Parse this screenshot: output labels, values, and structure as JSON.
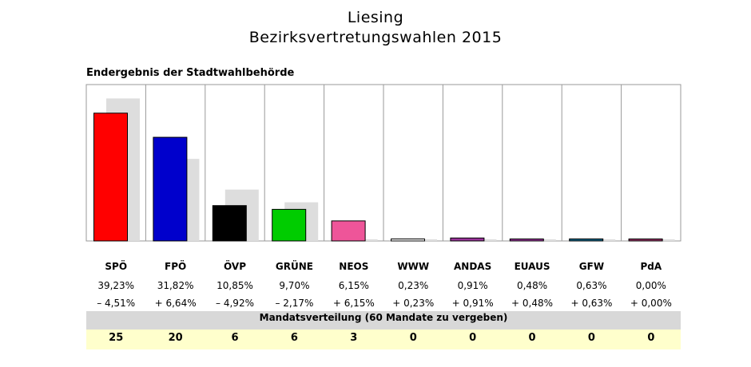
{
  "header": {
    "title_line1": "Liesing",
    "title_line2": "Bezirksvertretungswahlen 2015",
    "subtitle": "Endergebnis der Stadtwahlbehörde"
  },
  "chart_data": {
    "type": "bar",
    "title": "Liesing Bezirksvertretungswahlen 2015",
    "subtitle": "Endergebnis der Stadtwahlbehörde",
    "categories": [
      "SPÖ",
      "FPÖ",
      "ÖVP",
      "GRÜNE",
      "NEOS",
      "WWW",
      "ANDAS",
      "EUAUS",
      "GFW",
      "PdA"
    ],
    "ylim": [
      0,
      48
    ],
    "grid": false,
    "series": [
      {
        "name": "2015",
        "values": [
          39.23,
          31.82,
          10.85,
          9.7,
          6.15,
          0.23,
          0.91,
          0.48,
          0.63,
          0.0
        ],
        "labels": [
          "39,23%",
          "31,82%",
          "10,85%",
          "9,70%",
          "6,15%",
          "0,23%",
          "0,91%",
          "0,48%",
          "0,63%",
          "0,00%"
        ],
        "colors": [
          "#ff0000",
          "#0000cc",
          "#000000",
          "#00cc00",
          "#ee5599",
          "#ffffff",
          "#993399",
          "#993399",
          "#116688",
          "#993366"
        ]
      },
      {
        "values": [
          43.74,
          25.18,
          15.77,
          11.87,
          0,
          0,
          0,
          0,
          0,
          0
        ],
        "color": "#dddddd"
      }
    ],
    "changes": [
      "– 4,51%",
      "+ 6,64%",
      "– 4,92%",
      "– 2,17%",
      "+ 6,15%",
      "+ 0,23%",
      "+ 0,91%",
      "+ 0,48%",
      "+ 0,63%",
      "+ 0,00%"
    ]
  },
  "mandates": {
    "header": "Mandatsverteilung (60 Mandate zu vergeben)",
    "values": [
      "25",
      "20",
      "6",
      "6",
      "3",
      "0",
      "0",
      "0",
      "0",
      "0"
    ]
  }
}
